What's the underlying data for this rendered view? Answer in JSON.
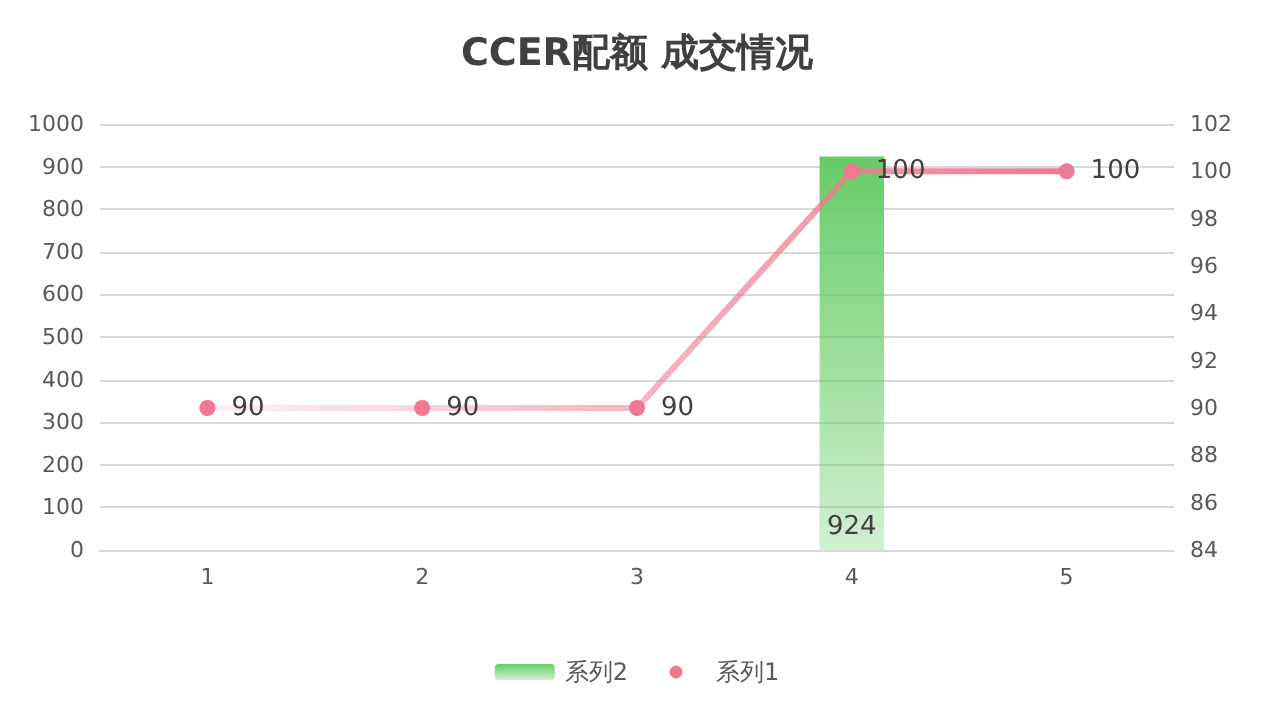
{
  "chart_data": {
    "type": "bar",
    "title": "CCER配额 成交情况",
    "categories": [
      "1",
      "2",
      "3",
      "4",
      "5"
    ],
    "series": [
      {
        "name": "系列2",
        "color": "#66cc66",
        "values": [
          null,
          null,
          null,
          924,
          null
        ]
      },
      {
        "name": "系列1",
        "type": "line",
        "axis": "y2",
        "color": "#f07890",
        "marker": "circle",
        "values": [
          90,
          90,
          90,
          100,
          100
        ]
      }
    ],
    "ylim": [
      0,
      1000
    ],
    "yticks": [
      0,
      100,
      200,
      300,
      400,
      500,
      600,
      700,
      800,
      900,
      1000
    ],
    "y2lim": [
      84,
      102
    ],
    "y2ticks": [
      84,
      86,
      88,
      90,
      92,
      94,
      96,
      98,
      100,
      102
    ],
    "grid": "y",
    "legend": "bottom",
    "data_labels": true
  }
}
